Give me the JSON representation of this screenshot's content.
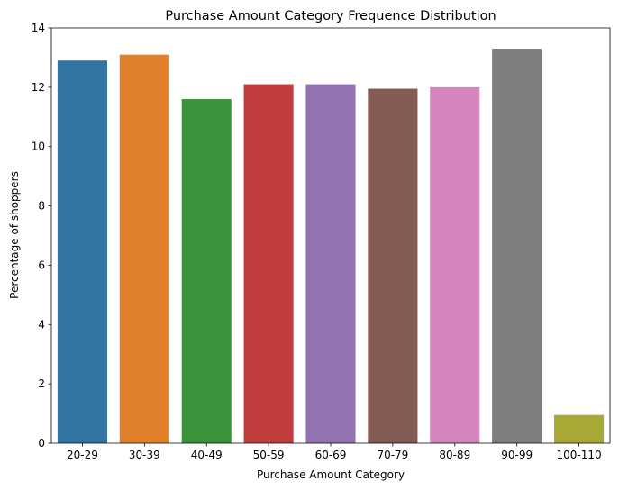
{
  "chart_data": {
    "type": "bar",
    "title": "Purchase Amount Category Frequence Distribution",
    "xlabel": "Purchase Amount Category",
    "ylabel": "Percentage of shoppers",
    "categories": [
      "20-29",
      "30-39",
      "40-49",
      "50-59",
      "60-69",
      "70-79",
      "80-89",
      "90-99",
      "100-110"
    ],
    "values": [
      12.9,
      13.1,
      11.6,
      12.1,
      12.1,
      11.95,
      12.0,
      13.3,
      0.95
    ],
    "colors": [
      "#3274a1",
      "#e1812c",
      "#3a923a",
      "#c03d3e",
      "#9372b2",
      "#845b53",
      "#d684bd",
      "#7f7f7f",
      "#a9aa35"
    ],
    "ylim": [
      0,
      14
    ],
    "yticks": [
      0,
      2,
      4,
      6,
      8,
      10,
      12,
      14
    ],
    "grid": false,
    "legend": "none"
  }
}
